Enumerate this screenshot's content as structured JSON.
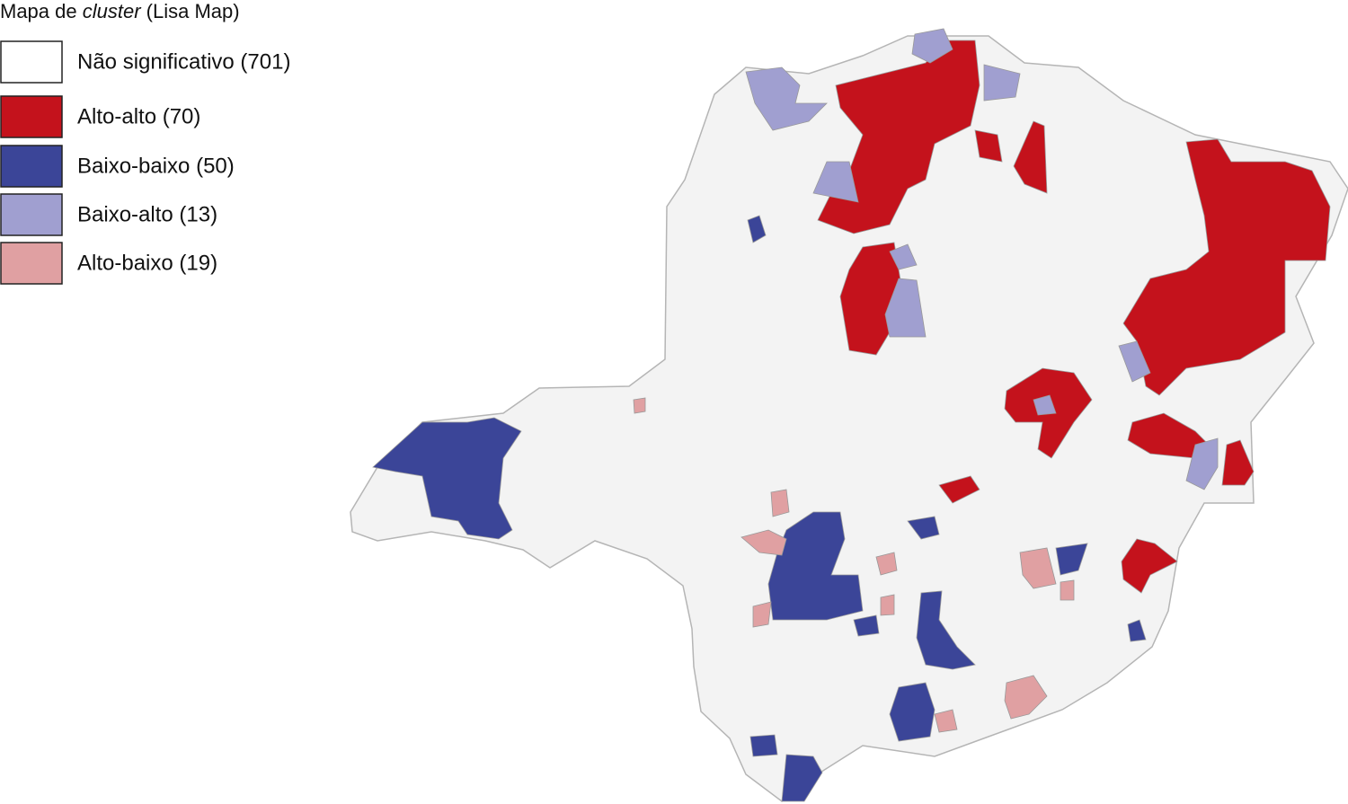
{
  "title": {
    "prefix": "Mapa de ",
    "italic": "cluster",
    "suffix": " (Lisa Map)"
  },
  "legend": {
    "items": [
      {
        "label": "Não significativo (701)",
        "color": "#ffffff"
      },
      {
        "label": "Alto-alto (70)",
        "color": "#c4121c"
      },
      {
        "label": "Baixo-baixo (50)",
        "color": "#3b4598"
      },
      {
        "label": "Baixo-alto (13)",
        "color": "#a09fd0"
      },
      {
        "label": "Alto-baixo (19)",
        "color": "#e0a0a2"
      }
    ]
  },
  "map": {
    "background": "#f3f3f3",
    "border": "#b5b5b5"
  }
}
